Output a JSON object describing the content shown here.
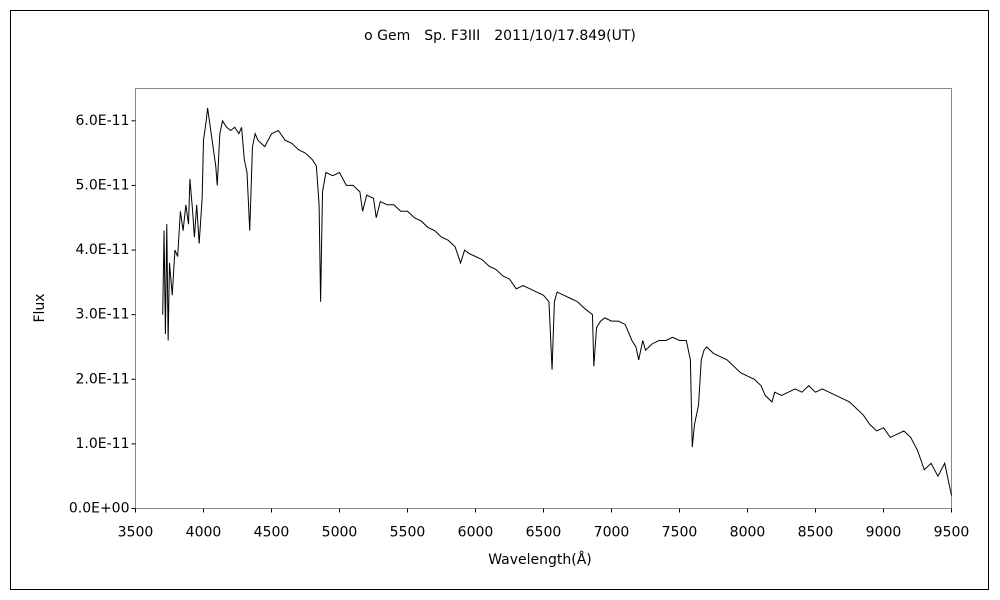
{
  "chart_data": {
    "type": "line",
    "title": "ο Gem　Sp. F3III　2011/10/17.849(UT)",
    "x_label": "Wavelength(Å)",
    "y_label": "Flux",
    "x": [
      3700,
      3710,
      3720,
      3730,
      3740,
      3750,
      3770,
      3790,
      3810,
      3830,
      3850,
      3870,
      3890,
      3900,
      3920,
      3933,
      3950,
      3968,
      3990,
      4000,
      4020,
      4030,
      4050,
      4070,
      4090,
      4101,
      4120,
      4140,
      4170,
      4200,
      4230,
      4260,
      4280,
      4300,
      4320,
      4340,
      4360,
      4380,
      4400,
      4450,
      4500,
      4550,
      4600,
      4650,
      4700,
      4750,
      4800,
      4830,
      4850,
      4861,
      4875,
      4900,
      4950,
      5000,
      5050,
      5100,
      5150,
      5170,
      5200,
      5250,
      5270,
      5300,
      5350,
      5400,
      5450,
      5500,
      5550,
      5600,
      5650,
      5700,
      5750,
      5800,
      5850,
      5890,
      5920,
      5950,
      6000,
      6050,
      6100,
      6150,
      6200,
      6250,
      6300,
      6350,
      6400,
      6450,
      6500,
      6540,
      6563,
      6580,
      6600,
      6650,
      6700,
      6750,
      6800,
      6860,
      6870,
      6890,
      6920,
      6950,
      7000,
      7050,
      7100,
      7150,
      7180,
      7200,
      7230,
      7250,
      7300,
      7350,
      7400,
      7450,
      7500,
      7550,
      7580,
      7594,
      7610,
      7640,
      7660,
      7680,
      7700,
      7750,
      7800,
      7850,
      7900,
      7950,
      8000,
      8050,
      8100,
      8130,
      8180,
      8200,
      8250,
      8300,
      8350,
      8400,
      8450,
      8500,
      8550,
      8600,
      8650,
      8700,
      8750,
      8800,
      8850,
      8900,
      8950,
      9000,
      9050,
      9100,
      9150,
      9200,
      9250,
      9300,
      9350,
      9400,
      9450,
      9480,
      9500
    ],
    "series": [
      {
        "name": "Flux",
        "color": "#000000",
        "values": [
          3e-11,
          4.3e-11,
          2.7e-11,
          4.4e-11,
          2.6e-11,
          3.8e-11,
          3.3e-11,
          4e-11,
          3.9e-11,
          4.6e-11,
          4.3e-11,
          4.7e-11,
          4.4e-11,
          5.1e-11,
          4.6e-11,
          4.2e-11,
          4.7e-11,
          4.1e-11,
          4.8e-11,
          5.7e-11,
          6e-11,
          6.2e-11,
          5.9e-11,
          5.6e-11,
          5.3e-11,
          5e-11,
          5.8e-11,
          6e-11,
          5.9e-11,
          5.85e-11,
          5.9e-11,
          5.8e-11,
          5.9e-11,
          5.4e-11,
          5.2e-11,
          4.3e-11,
          5.6e-11,
          5.8e-11,
          5.7e-11,
          5.6e-11,
          5.8e-11,
          5.85e-11,
          5.7e-11,
          5.65e-11,
          5.55e-11,
          5.5e-11,
          5.4e-11,
          5.3e-11,
          4.7e-11,
          3.2e-11,
          4.9e-11,
          5.2e-11,
          5.15e-11,
          5.2e-11,
          5e-11,
          5e-11,
          4.9e-11,
          4.6e-11,
          4.85e-11,
          4.8e-11,
          4.5e-11,
          4.75e-11,
          4.7e-11,
          4.7e-11,
          4.6e-11,
          4.6e-11,
          4.5e-11,
          4.45e-11,
          4.35e-11,
          4.3e-11,
          4.2e-11,
          4.15e-11,
          4.05e-11,
          3.8e-11,
          4e-11,
          3.95e-11,
          3.9e-11,
          3.85e-11,
          3.75e-11,
          3.7e-11,
          3.6e-11,
          3.55e-11,
          3.4e-11,
          3.45e-11,
          3.4e-11,
          3.35e-11,
          3.3e-11,
          3.2e-11,
          2.15e-11,
          3.2e-11,
          3.35e-11,
          3.3e-11,
          3.25e-11,
          3.2e-11,
          3.1e-11,
          3e-11,
          2.2e-11,
          2.8e-11,
          2.9e-11,
          2.95e-11,
          2.9e-11,
          2.9e-11,
          2.85e-11,
          2.6e-11,
          2.5e-11,
          2.3e-11,
          2.6e-11,
          2.45e-11,
          2.55e-11,
          2.6e-11,
          2.6e-11,
          2.65e-11,
          2.6e-11,
          2.6e-11,
          2.3e-11,
          9.5e-12,
          1.3e-11,
          1.6e-11,
          2.3e-11,
          2.45e-11,
          2.5e-11,
          2.4e-11,
          2.35e-11,
          2.3e-11,
          2.2e-11,
          2.1e-11,
          2.05e-11,
          2e-11,
          1.9e-11,
          1.75e-11,
          1.65e-11,
          1.8e-11,
          1.75e-11,
          1.8e-11,
          1.85e-11,
          1.8e-11,
          1.9e-11,
          1.8e-11,
          1.85e-11,
          1.8e-11,
          1.75e-11,
          1.7e-11,
          1.65e-11,
          1.55e-11,
          1.45e-11,
          1.3e-11,
          1.2e-11,
          1.25e-11,
          1.1e-11,
          1.15e-11,
          1.2e-11,
          1.1e-11,
          9e-12,
          6e-12,
          7e-12,
          5e-12,
          7e-12,
          4e-12,
          2e-12
        ]
      }
    ],
    "xlim": [
      3500,
      9500
    ],
    "xticks": [
      3500,
      4000,
      4500,
      5000,
      5500,
      6000,
      6500,
      7000,
      7500,
      8000,
      8500,
      9000,
      9500
    ],
    "ylim": [
      0,
      6.5e-11
    ],
    "yticks": [
      {
        "value": 0,
        "label": "0.0E+00"
      },
      {
        "value": 1e-11,
        "label": "1.0E-11"
      },
      {
        "value": 2e-11,
        "label": "2.0E-11"
      },
      {
        "value": 3e-11,
        "label": "3.0E-11"
      },
      {
        "value": 4e-11,
        "label": "4.0E-11"
      },
      {
        "value": 5e-11,
        "label": "5.0E-11"
      },
      {
        "value": 6e-11,
        "label": "6.0E-11"
      }
    ],
    "grid": false
  }
}
